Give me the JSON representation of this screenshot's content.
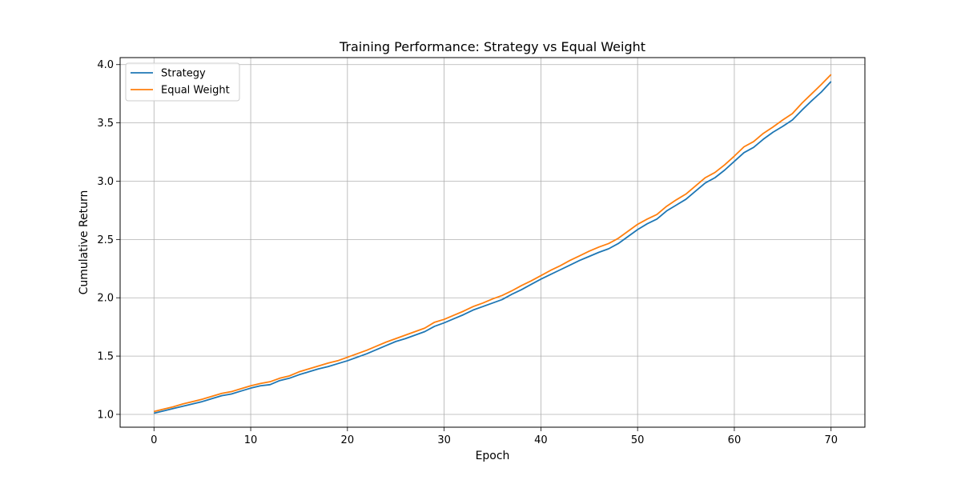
{
  "chart_data": {
    "type": "line",
    "title": "Training Performance: Strategy vs Equal Weight",
    "xlabel": "Epoch",
    "ylabel": "Cumulative Return",
    "xlim": [
      -3.5,
      73.5
    ],
    "ylim": [
      0.89,
      4.06
    ],
    "xticks": [
      0,
      10,
      20,
      30,
      40,
      50,
      60,
      70
    ],
    "yticks": [
      1.0,
      1.5,
      2.0,
      2.5,
      3.0,
      3.5,
      4.0
    ],
    "ytick_labels": [
      "1.0",
      "1.5",
      "2.0",
      "2.5",
      "3.0",
      "3.5",
      "4.0"
    ],
    "grid": true,
    "legend_position": "top-left",
    "x": [
      0,
      1,
      2,
      3,
      4,
      5,
      6,
      7,
      8,
      9,
      10,
      11,
      12,
      13,
      14,
      15,
      16,
      17,
      18,
      19,
      20,
      21,
      22,
      23,
      24,
      25,
      26,
      27,
      28,
      29,
      30,
      31,
      32,
      33,
      34,
      35,
      36,
      37,
      38,
      39,
      40,
      41,
      42,
      43,
      44,
      45,
      46,
      47,
      48,
      49,
      50,
      51,
      52,
      53,
      54,
      55,
      56,
      57,
      58,
      59,
      60,
      61,
      62,
      63,
      64,
      65,
      66,
      67,
      68,
      69,
      70
    ],
    "series": [
      {
        "name": "Strategy",
        "color": "#1f77b4",
        "values": [
          1.01,
          1.03,
          1.05,
          1.07,
          1.09,
          1.11,
          1.135,
          1.16,
          1.175,
          1.2,
          1.225,
          1.245,
          1.255,
          1.29,
          1.31,
          1.34,
          1.365,
          1.39,
          1.41,
          1.435,
          1.46,
          1.49,
          1.52,
          1.555,
          1.59,
          1.625,
          1.65,
          1.68,
          1.71,
          1.755,
          1.785,
          1.82,
          1.855,
          1.895,
          1.925,
          1.955,
          1.985,
          2.03,
          2.07,
          2.115,
          2.16,
          2.2,
          2.24,
          2.28,
          2.32,
          2.355,
          2.39,
          2.42,
          2.465,
          2.525,
          2.585,
          2.635,
          2.675,
          2.745,
          2.795,
          2.845,
          2.915,
          2.985,
          3.03,
          3.095,
          3.17,
          3.245,
          3.29,
          3.36,
          3.42,
          3.47,
          3.525,
          3.61,
          3.69,
          3.765,
          3.855
        ]
      },
      {
        "name": "Equal Weight",
        "color": "#ff7f0e",
        "values": [
          1.025,
          1.045,
          1.065,
          1.09,
          1.11,
          1.13,
          1.155,
          1.18,
          1.195,
          1.22,
          1.245,
          1.265,
          1.28,
          1.31,
          1.33,
          1.365,
          1.39,
          1.415,
          1.44,
          1.46,
          1.49,
          1.52,
          1.55,
          1.585,
          1.62,
          1.65,
          1.68,
          1.71,
          1.74,
          1.79,
          1.815,
          1.85,
          1.885,
          1.925,
          1.955,
          1.99,
          2.02,
          2.06,
          2.105,
          2.145,
          2.19,
          2.235,
          2.275,
          2.32,
          2.36,
          2.4,
          2.435,
          2.465,
          2.51,
          2.57,
          2.63,
          2.675,
          2.715,
          2.785,
          2.84,
          2.89,
          2.96,
          3.03,
          3.075,
          3.14,
          3.215,
          3.295,
          3.34,
          3.41,
          3.465,
          3.525,
          3.58,
          3.67,
          3.75,
          3.83,
          3.915
        ]
      }
    ]
  }
}
